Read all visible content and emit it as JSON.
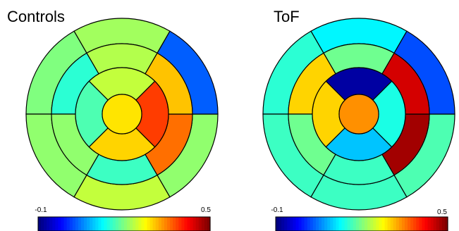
{
  "chart_data": [
    {
      "type": "bullseye",
      "title": "Controls",
      "value_range": [
        -0.1,
        0.5
      ],
      "segments": {
        "basal": [
          0.22,
          0.2,
          0.21,
          0.24,
          0.21,
          0.03
        ],
        "mid": [
          0.23,
          0.15,
          0.21,
          0.16,
          0.36,
          0.31
        ],
        "apical": [
          0.24,
          0.17,
          0.3,
          0.39
        ],
        "apex": 0.29
      },
      "colorbar": {
        "min_label": "-0.1",
        "max_label": "0.5"
      }
    },
    {
      "type": "bullseye",
      "title": "ToF",
      "value_range": [
        -0.1,
        0.5
      ],
      "segments": {
        "basal": [
          0.12,
          0.15,
          0.16,
          0.16,
          0.17,
          0.02
        ],
        "mid": [
          0.19,
          0.3,
          0.19,
          0.16,
          0.48,
          0.45
        ],
        "apical": [
          -0.08,
          0.3,
          0.09,
          0.14
        ],
        "apex": 0.34
      },
      "colorbar": {
        "min_label": "-0.1",
        "max_label": "0.5"
      }
    }
  ]
}
